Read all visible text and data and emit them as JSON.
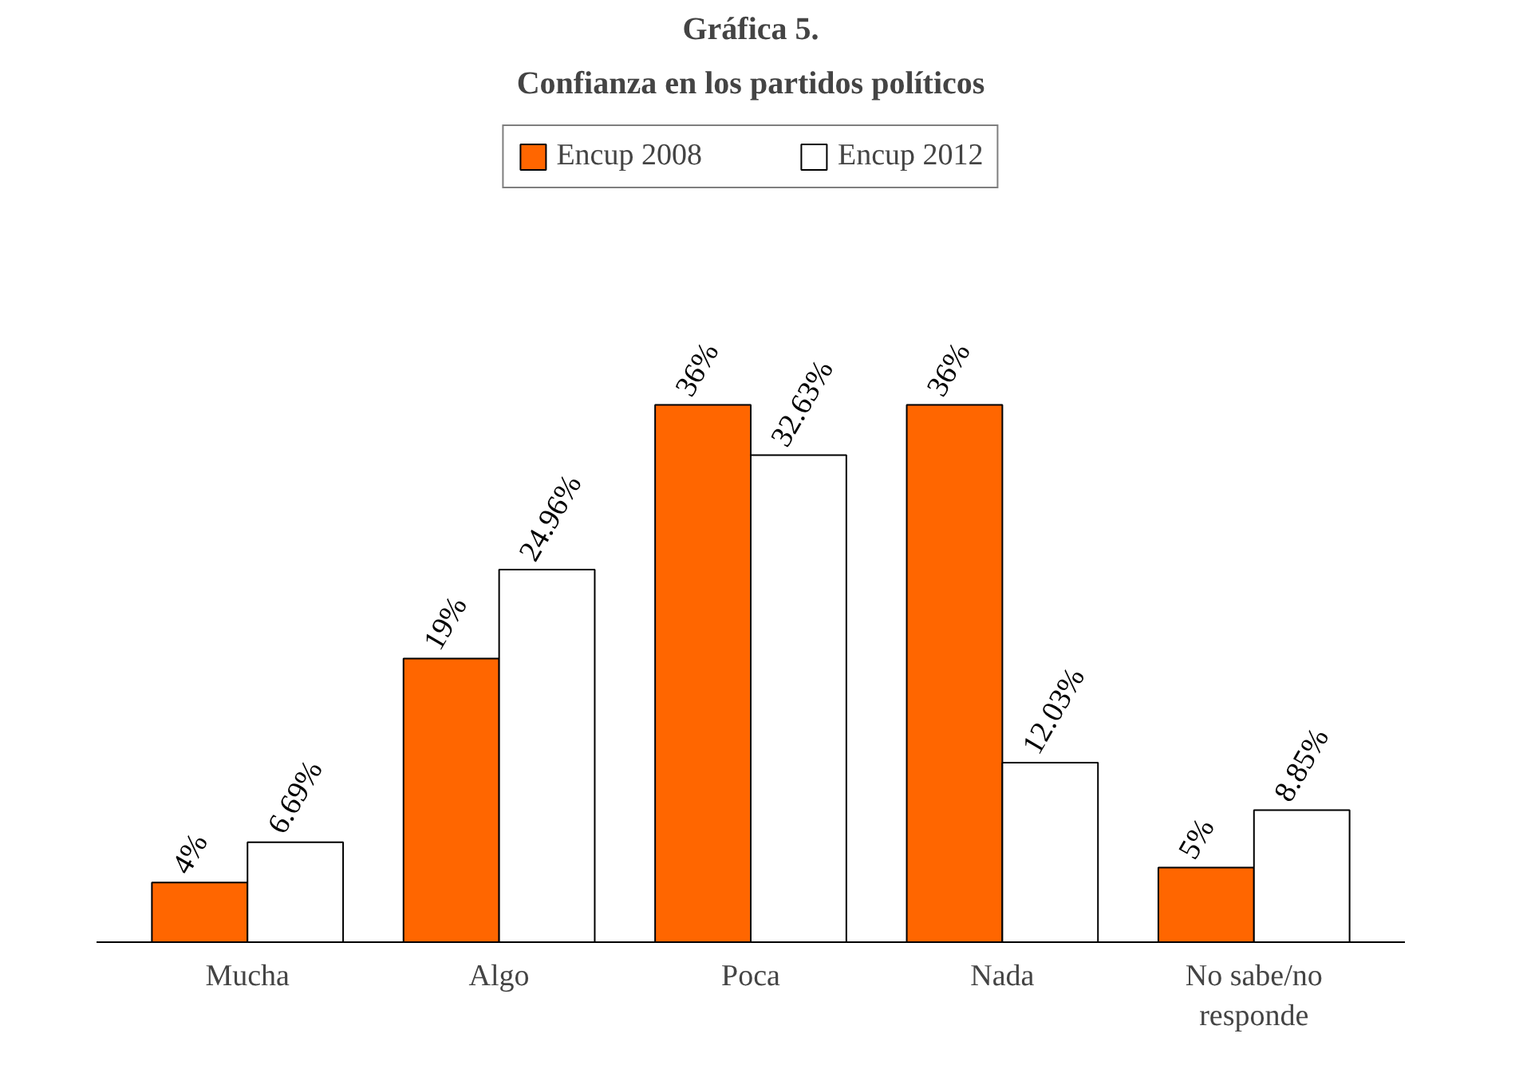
{
  "chart_data": {
    "type": "bar",
    "title": "Gráfica 5.",
    "subtitle": "Confianza en los partidos políticos",
    "categories": [
      "Mucha",
      "Algo",
      "Poca",
      "Nada",
      "No sabe/no responde"
    ],
    "series": [
      {
        "name": "Encup 2008",
        "color": "#ff6600",
        "values": [
          4,
          19,
          36,
          36,
          5
        ],
        "value_labels": [
          "4%",
          "19%",
          "36%",
          "36%",
          "5%"
        ]
      },
      {
        "name": "Encup 2012",
        "color": "#ffffff",
        "values": [
          6.69,
          24.96,
          32.63,
          12.03,
          8.85
        ],
        "value_labels": [
          "6.69%",
          "24.96%",
          "32.63%",
          "12.03%",
          "8.85%"
        ]
      }
    ],
    "legend": "top"
  }
}
